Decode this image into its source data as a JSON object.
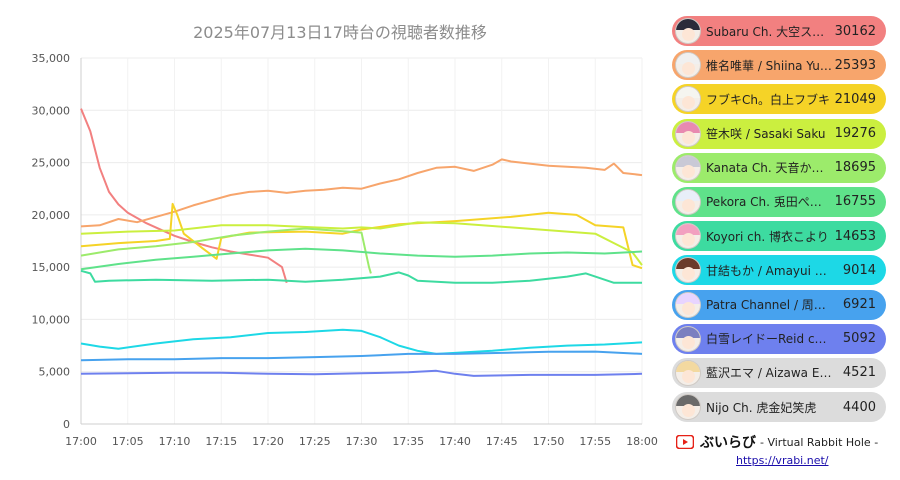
{
  "chart_data": {
    "type": "line",
    "title": "2025年07月13日17時台の視聴者数推移",
    "xlabel": "",
    "ylabel": "",
    "x_ticks": [
      "17:00",
      "17:05",
      "17:10",
      "17:15",
      "17:20",
      "17:25",
      "17:30",
      "17:35",
      "17:40",
      "17:45",
      "17:50",
      "17:55",
      "18:00"
    ],
    "y_ticks": [
      "0",
      "5,000",
      "10,000",
      "15,000",
      "20,000",
      "25,000",
      "30,000",
      "35,000"
    ],
    "xlim": [
      0,
      60
    ],
    "ylim": [
      0,
      35000
    ],
    "grid": true,
    "series": [
      {
        "name": "Subaru Ch. 大空スバル",
        "value": "30162",
        "color": "#f28080",
        "points": [
          [
            0,
            30162
          ],
          [
            1,
            28000
          ],
          [
            2,
            24500
          ],
          [
            3,
            22200
          ],
          [
            4,
            21000
          ],
          [
            5,
            20200
          ],
          [
            6,
            19700
          ],
          [
            7,
            19200
          ],
          [
            8,
            18800
          ],
          [
            10,
            18000
          ],
          [
            12,
            17400
          ],
          [
            14,
            16900
          ],
          [
            16,
            16500
          ],
          [
            18,
            16200
          ],
          [
            20,
            15900
          ],
          [
            21.5,
            15000
          ],
          [
            22,
            13500
          ]
        ]
      },
      {
        "name": "椎名唯華 / Shiina Yuika",
        "value": "25393",
        "color": "#f7a56c",
        "points": [
          [
            0,
            18900
          ],
          [
            2,
            19000
          ],
          [
            4,
            19600
          ],
          [
            6,
            19300
          ],
          [
            8,
            19800
          ],
          [
            10,
            20300
          ],
          [
            12,
            20900
          ],
          [
            14,
            21400
          ],
          [
            16,
            21900
          ],
          [
            18,
            22200
          ],
          [
            20,
            22300
          ],
          [
            22,
            22100
          ],
          [
            24,
            22300
          ],
          [
            26,
            22400
          ],
          [
            28,
            22600
          ],
          [
            30,
            22500
          ],
          [
            32,
            23000
          ],
          [
            34,
            23400
          ],
          [
            36,
            24000
          ],
          [
            38,
            24500
          ],
          [
            40,
            24600
          ],
          [
            42,
            24200
          ],
          [
            44,
            24800
          ],
          [
            45,
            25300
          ],
          [
            46,
            25100
          ],
          [
            48,
            24900
          ],
          [
            50,
            24700
          ],
          [
            52,
            24600
          ],
          [
            54,
            24500
          ],
          [
            56,
            24300
          ],
          [
            57,
            24900
          ],
          [
            58,
            24000
          ],
          [
            60,
            23800
          ]
        ]
      },
      {
        "name": "フブキCh。白上フブキ",
        "value": "21049",
        "color": "#f5d327",
        "points": [
          [
            0,
            17000
          ],
          [
            4,
            17300
          ],
          [
            8,
            17500
          ],
          [
            9.5,
            17700
          ],
          [
            9.8,
            21049
          ],
          [
            10.3,
            20000
          ],
          [
            11,
            18200
          ],
          [
            13,
            16800
          ],
          [
            14.5,
            15800
          ],
          [
            15,
            17800
          ],
          [
            18,
            18300
          ],
          [
            24,
            18400
          ],
          [
            28,
            18200
          ],
          [
            30,
            18600
          ],
          [
            34,
            19100
          ],
          [
            40,
            19400
          ],
          [
            46,
            19800
          ],
          [
            50,
            20200
          ],
          [
            53,
            20000
          ],
          [
            55,
            19000
          ],
          [
            58,
            18800
          ],
          [
            59,
            15200
          ],
          [
            60,
            14900
          ]
        ]
      },
      {
        "name": "笹木咲 / Sasaki Saku",
        "value": "19276",
        "color": "#cbef3f",
        "points": [
          [
            0,
            18200
          ],
          [
            5,
            18400
          ],
          [
            10,
            18500
          ],
          [
            15,
            19000
          ],
          [
            20,
            19000
          ],
          [
            25,
            18800
          ],
          [
            28,
            18700
          ],
          [
            30,
            18800
          ],
          [
            32,
            18700
          ],
          [
            36,
            19276
          ],
          [
            40,
            19200
          ],
          [
            46,
            18800
          ],
          [
            52,
            18400
          ],
          [
            55,
            18200
          ],
          [
            57,
            17300
          ],
          [
            59,
            16400
          ],
          [
            60,
            15200
          ]
        ]
      },
      {
        "name": "Kanata Ch. 天音かなた",
        "value": "18695",
        "color": "#9ceb6b",
        "points": [
          [
            0,
            16100
          ],
          [
            4,
            16700
          ],
          [
            8,
            17000
          ],
          [
            12,
            17400
          ],
          [
            16,
            18000
          ],
          [
            20,
            18400
          ],
          [
            24,
            18695
          ],
          [
            27,
            18500
          ],
          [
            30,
            18300
          ],
          [
            30.8,
            15000
          ],
          [
            31,
            14400
          ]
        ]
      },
      {
        "name": "Pekora Ch. 兎田ぺこら",
        "value": "16755",
        "color": "#5fe28a",
        "points": [
          [
            0,
            14800
          ],
          [
            4,
            15300
          ],
          [
            8,
            15700
          ],
          [
            12,
            16000
          ],
          [
            16,
            16300
          ],
          [
            20,
            16600
          ],
          [
            24,
            16755
          ],
          [
            28,
            16600
          ],
          [
            32,
            16300
          ],
          [
            36,
            16100
          ],
          [
            40,
            16000
          ],
          [
            44,
            16100
          ],
          [
            48,
            16300
          ],
          [
            52,
            16400
          ],
          [
            56,
            16300
          ],
          [
            60,
            16500
          ]
        ]
      },
      {
        "name": "Koyori ch. 博衣こより",
        "value": "14653",
        "color": "#3ddba0",
        "points": [
          [
            0,
            14653
          ],
          [
            1,
            14400
          ],
          [
            1.5,
            13600
          ],
          [
            3,
            13700
          ],
          [
            8,
            13800
          ],
          [
            14,
            13700
          ],
          [
            20,
            13800
          ],
          [
            24,
            13600
          ],
          [
            28,
            13800
          ],
          [
            32,
            14100
          ],
          [
            34,
            14500
          ],
          [
            35,
            14200
          ],
          [
            36,
            13700
          ],
          [
            40,
            13500
          ],
          [
            44,
            13500
          ],
          [
            48,
            13700
          ],
          [
            52,
            14100
          ],
          [
            54,
            14400
          ],
          [
            55,
            14100
          ],
          [
            57,
            13500
          ],
          [
            60,
            13500
          ]
        ]
      },
      {
        "name": "甘結もか / Amayui Moka",
        "value": "9014",
        "color": "#1dd8e6",
        "points": [
          [
            0,
            7700
          ],
          [
            2,
            7400
          ],
          [
            4,
            7200
          ],
          [
            8,
            7700
          ],
          [
            12,
            8100
          ],
          [
            16,
            8300
          ],
          [
            20,
            8700
          ],
          [
            24,
            8800
          ],
          [
            28,
            9014
          ],
          [
            30,
            8900
          ],
          [
            32,
            8300
          ],
          [
            34,
            7500
          ],
          [
            36,
            7000
          ],
          [
            38,
            6700
          ],
          [
            40,
            6800
          ],
          [
            44,
            7000
          ],
          [
            48,
            7300
          ],
          [
            52,
            7500
          ],
          [
            56,
            7600
          ],
          [
            60,
            7800
          ]
        ]
      },
      {
        "name": "Patra Channel / 周防パトラ",
        "value": "6921",
        "color": "#47a2ee",
        "points": [
          [
            0,
            6100
          ],
          [
            5,
            6200
          ],
          [
            10,
            6200
          ],
          [
            15,
            6300
          ],
          [
            20,
            6300
          ],
          [
            25,
            6400
          ],
          [
            30,
            6500
          ],
          [
            35,
            6700
          ],
          [
            40,
            6700
          ],
          [
            45,
            6800
          ],
          [
            50,
            6900
          ],
          [
            55,
            6921
          ],
          [
            60,
            6700
          ]
        ]
      },
      {
        "name": "白雪レイドーReid channel",
        "value": "5092",
        "color": "#6e80ee",
        "points": [
          [
            0,
            4800
          ],
          [
            5,
            4850
          ],
          [
            10,
            4900
          ],
          [
            15,
            4900
          ],
          [
            20,
            4800
          ],
          [
            25,
            4750
          ],
          [
            30,
            4850
          ],
          [
            35,
            4950
          ],
          [
            38,
            5092
          ],
          [
            40,
            4800
          ],
          [
            42,
            4600
          ],
          [
            48,
            4700
          ],
          [
            55,
            4700
          ],
          [
            60,
            4800
          ]
        ]
      },
      {
        "name": "藍沢エマ / Aizawa Ema",
        "value": "4521",
        "color": "#dcdcdc"
      },
      {
        "name": "Nijo Ch. 虎金妃笑虎",
        "value": "4400",
        "color": "#dcdcdc"
      }
    ]
  },
  "footer": {
    "icon": "youtube-play-icon",
    "brand": "ぶいらび",
    "subtitle": "- Virtual Rabbit Hole -",
    "url": "https://vrabi.net/"
  }
}
